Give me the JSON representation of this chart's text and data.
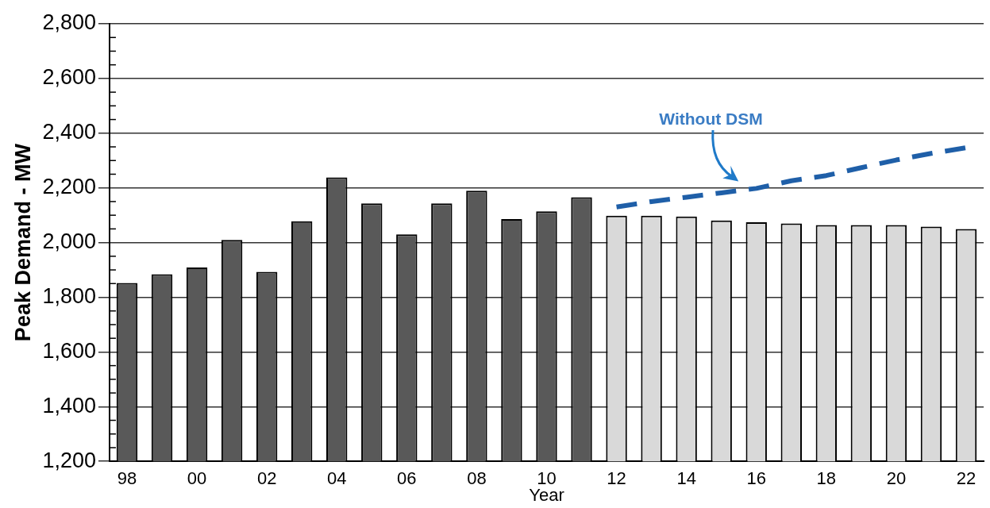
{
  "chart_data": {
    "type": "bar",
    "xlabel": "Year",
    "ylabel": "Peak Demand - MW",
    "categories": [
      "98",
      null,
      "00",
      null,
      "02",
      null,
      "04",
      null,
      "06",
      null,
      "08",
      null,
      "10",
      null,
      "12",
      null,
      "14",
      null,
      "16",
      null,
      "18",
      null,
      "20",
      null,
      "22"
    ],
    "series": [
      {
        "colors": [
          "#595959",
          "#595959",
          "#595959",
          "#595959",
          "#595959",
          "#595959",
          "#595959",
          "#595959",
          "#595959",
          "#595959",
          "#595959",
          "#595959",
          "#595959",
          "#595959",
          "#d9d9d9",
          "#d9d9d9",
          "#d9d9d9",
          "#d9d9d9",
          "#d9d9d9",
          "#d9d9d9",
          "#d9d9d9",
          "#d9d9d9",
          "#d9d9d9",
          "#d9d9d9",
          "#d9d9d9"
        ],
        "values": [
          1852,
          1884,
          1909,
          2010,
          1893,
          2078,
          2238,
          2143,
          2030,
          2143,
          2190,
          2086,
          2114,
          2166,
          2098,
          2098,
          2095,
          2081,
          2074,
          2070,
          2064,
          2064,
          2064,
          2058,
          2050
        ]
      },
      {
        "type": "line",
        "name": "Without DSM",
        "color": "#1f5fa8",
        "line_style": "dashed",
        "marker": "none",
        "values": [
          null,
          null,
          null,
          null,
          null,
          null,
          null,
          null,
          null,
          null,
          null,
          null,
          null,
          null,
          2130,
          2150,
          2166,
          2182,
          2198,
          2226,
          2245,
          2274,
          2302,
          2326,
          2347
        ]
      }
    ],
    "ylim": [
      1200,
      2800
    ],
    "yticks": [
      {
        "value": 1200,
        "label": "1,200"
      },
      {
        "value": 1400,
        "label": "1,400"
      },
      {
        "value": 1600,
        "label": "1,600"
      },
      {
        "value": 1800,
        "label": "1,800"
      },
      {
        "value": 2000,
        "label": "2,000"
      },
      {
        "value": 2200,
        "label": "2,200"
      },
      {
        "value": 2400,
        "label": "2,400"
      },
      {
        "value": 2600,
        "label": "2,600"
      },
      {
        "value": 2800,
        "label": "2,800"
      }
    ],
    "grid": "y",
    "legend": false
  }
}
